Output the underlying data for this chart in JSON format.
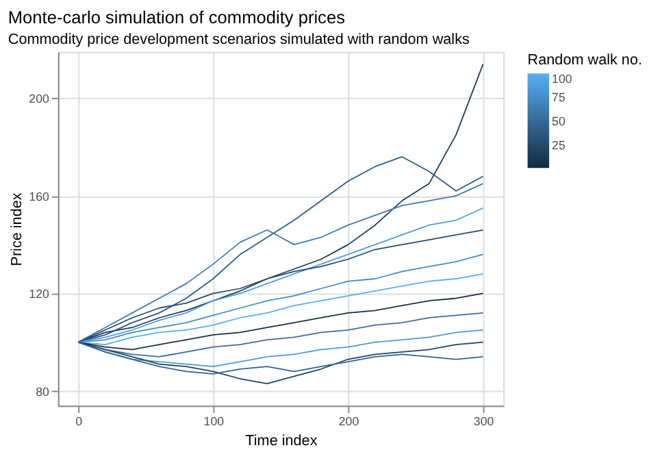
{
  "chart_data": {
    "type": "line",
    "title": "Monte-carlo simulation of commodity prices",
    "subtitle": "Commodity price development scenarios simulated with random walks",
    "xlabel": "Time index",
    "ylabel": "Price index",
    "clabel": "Random walk no.",
    "clim": [
      1,
      100
    ],
    "cticks": [
      25,
      50,
      75,
      100
    ],
    "colors": [
      "#132b43",
      "#56b1f7"
    ],
    "x": [
      0,
      20,
      40,
      60,
      80,
      100,
      120,
      140,
      160,
      180,
      200,
      220,
      240,
      260,
      280,
      300
    ],
    "xlim": [
      -15,
      315
    ],
    "xticks": [
      0,
      100,
      200,
      300
    ],
    "ylim": [
      74,
      219
    ],
    "yticks": [
      80,
      120,
      160,
      200
    ],
    "grid": true,
    "marker": "none",
    "line_style": "solid",
    "series": [
      {
        "color": "#1c3a58",
        "values": [
          100,
          104,
          106,
          110,
          113,
          117,
          121,
          126,
          130,
          134,
          140,
          148,
          158,
          165,
          185,
          214
        ]
      },
      {
        "color": "#2d5a86",
        "values": [
          100,
          103,
          108,
          112,
          118,
          126,
          136,
          143,
          150,
          158,
          166,
          172,
          176,
          170,
          162,
          168
        ]
      },
      {
        "color": "#3d7ab4",
        "values": [
          100,
          106,
          112,
          118,
          124,
          132,
          141,
          146,
          140,
          143,
          148,
          152,
          156,
          158,
          160,
          165
        ]
      },
      {
        "color": "#4e9fe2",
        "values": [
          100,
          102,
          105,
          109,
          112,
          117,
          120,
          124,
          128,
          132,
          136,
          140,
          144,
          148,
          150,
          155
        ]
      },
      {
        "color": "#254a6d",
        "values": [
          100,
          105,
          110,
          114,
          116,
          120,
          122,
          126,
          129,
          131,
          134,
          138,
          140,
          142,
          144,
          146
        ]
      },
      {
        "color": "#438ac8",
        "values": [
          100,
          101,
          104,
          106,
          108,
          111,
          114,
          117,
          119,
          122,
          125,
          126,
          129,
          131,
          133,
          136
        ]
      },
      {
        "color": "#54aef3",
        "values": [
          100,
          99,
          102,
          104,
          105,
          107,
          110,
          112,
          115,
          117,
          119,
          121,
          123,
          125,
          126,
          128
        ]
      },
      {
        "color": "#16304a",
        "values": [
          100,
          98,
          97,
          99,
          101,
          103,
          104,
          106,
          108,
          110,
          112,
          113,
          115,
          117,
          118,
          120
        ]
      },
      {
        "color": "#366c9f",
        "values": [
          100,
          97,
          95,
          94,
          96,
          98,
          99,
          101,
          102,
          104,
          105,
          107,
          108,
          110,
          111,
          112
        ]
      },
      {
        "color": "#4b99da",
        "values": [
          100,
          96,
          93,
          92,
          91,
          90,
          92,
          94,
          95,
          97,
          98,
          100,
          101,
          102,
          104,
          105
        ]
      },
      {
        "color": "#21425f",
        "values": [
          100,
          97,
          94,
          91,
          90,
          88,
          85,
          83,
          86,
          89,
          93,
          95,
          96,
          97,
          99,
          100
        ]
      },
      {
        "color": "#30608e",
        "values": [
          100,
          96,
          93,
          90,
          88,
          87,
          89,
          90,
          88,
          90,
          92,
          94,
          95,
          94,
          93,
          94
        ]
      }
    ]
  }
}
